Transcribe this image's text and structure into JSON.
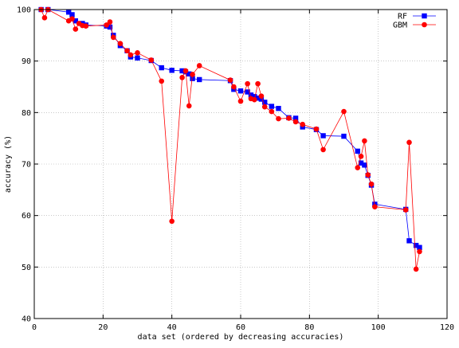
{
  "chart_data": {
    "type": "line",
    "title": "",
    "xlabel": "data set (ordered by decreasing accuracies)",
    "ylabel": "accuracy (%)",
    "xlim": [
      0,
      120
    ],
    "ylim": [
      40,
      100
    ],
    "x_ticks": [
      0,
      20,
      40,
      60,
      80,
      100,
      120
    ],
    "y_ticks": [
      40,
      50,
      60,
      70,
      80,
      90,
      100
    ],
    "grid": true,
    "legend": "top-right",
    "series": [
      {
        "name": "RF",
        "color": "#0000ff",
        "marker": "square",
        "x": [
          2,
          4,
          10,
          11,
          12,
          14,
          15,
          21,
          22,
          23,
          25,
          27,
          28,
          30,
          34,
          37,
          40,
          43,
          44,
          45,
          46,
          48,
          57,
          58,
          60,
          62,
          63,
          64,
          65,
          66,
          67,
          69,
          71,
          74,
          76,
          78,
          82,
          84,
          90,
          94,
          95,
          96,
          97,
          98,
          99,
          108,
          109,
          111,
          112
        ],
        "values": [
          100,
          100,
          99.5,
          99.0,
          97.8,
          97.3,
          97.0,
          96.8,
          96.6,
          95.0,
          93.0,
          92.0,
          90.8,
          90.6,
          90.1,
          88.7,
          88.2,
          88.1,
          87.9,
          87.5,
          86.6,
          86.4,
          86.2,
          84.5,
          84.2,
          84.0,
          83.4,
          83.1,
          82.8,
          82.6,
          82.0,
          81.2,
          80.8,
          79.0,
          78.9,
          77.2,
          76.7,
          75.5,
          75.4,
          72.5,
          70.2,
          69.8,
          67.8,
          65.9,
          62.2,
          61.2,
          55.1,
          54.2,
          53.8
        ]
      },
      {
        "name": "GBM",
        "color": "#ff0000",
        "marker": "circle",
        "x": [
          2,
          3,
          4,
          10,
          11,
          12,
          13,
          14,
          15,
          21,
          22,
          23,
          25,
          27,
          28,
          30,
          34,
          37,
          40,
          43,
          44,
          45,
          46,
          48,
          57,
          58,
          60,
          62,
          63,
          64,
          65,
          66,
          67,
          69,
          71,
          74,
          76,
          78,
          82,
          84,
          90,
          94,
          95,
          96,
          97,
          98,
          99,
          108,
          109,
          111,
          112
        ],
        "values": [
          100,
          98.4,
          100,
          97.8,
          98.2,
          96.2,
          97.3,
          96.9,
          96.8,
          97.0,
          97.6,
          94.6,
          93.4,
          92.0,
          91.2,
          91.6,
          90.2,
          86.1,
          58.9,
          86.8,
          88.1,
          81.3,
          87.4,
          89.1,
          86.3,
          85.0,
          82.2,
          85.6,
          82.7,
          82.5,
          85.6,
          83.2,
          81.1,
          80.2,
          78.8,
          78.9,
          78.2,
          77.7,
          76.8,
          72.8,
          80.2,
          69.3,
          71.5,
          74.5,
          67.9,
          66.1,
          61.7,
          61.1,
          74.2,
          49.6,
          53.0
        ]
      }
    ]
  }
}
